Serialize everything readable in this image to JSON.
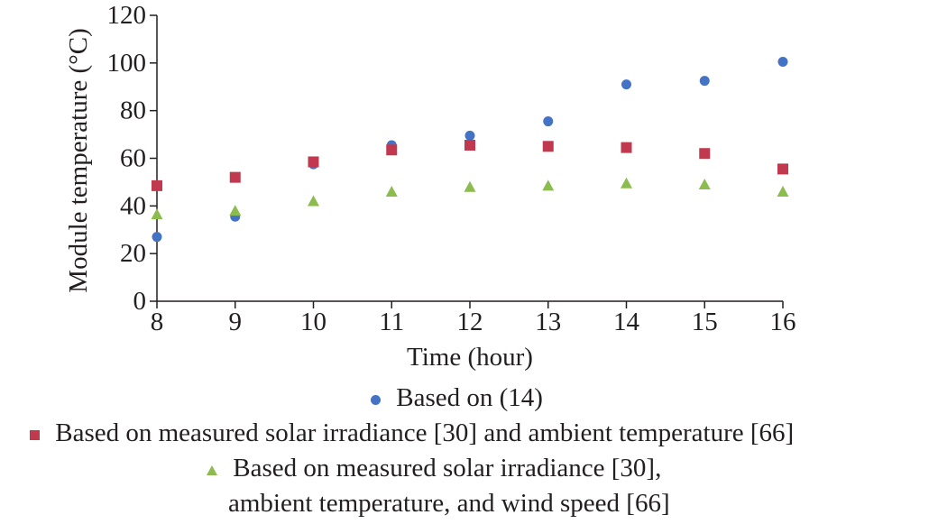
{
  "chart_data": {
    "type": "scatter",
    "x": [
      8,
      9,
      10,
      11,
      12,
      13,
      14,
      15,
      16
    ],
    "xlabel": "Time (hour)",
    "ylabel": "Module temperature (°C)",
    "xlim": [
      8,
      16
    ],
    "ylim": [
      0,
      120
    ],
    "xticks": [
      "8",
      "9",
      "10",
      "11",
      "12",
      "13",
      "14",
      "15",
      "16"
    ],
    "yticks": [
      "0",
      "20",
      "40",
      "60",
      "80",
      "100",
      "120"
    ],
    "grid": false,
    "legend_position": "bottom",
    "series": [
      {
        "name": "Based on (14)",
        "marker": "circle",
        "color": "#4472c4",
        "values": [
          27,
          35.5,
          57.5,
          65.5,
          69.5,
          75.5,
          91,
          92.5,
          100.5
        ]
      },
      {
        "name": "Based on measured solar irradiance [30] and ambient temperature [66]",
        "marker": "square",
        "color": "#c0394e",
        "values": [
          48.5,
          52,
          58.5,
          63.5,
          65.5,
          65,
          64.5,
          62,
          55.5
        ]
      },
      {
        "name_lines": [
          "Based on measured solar irradiance [30],",
          "ambient temperature, and wind speed [66]"
        ],
        "marker": "triangle",
        "color": "#8cbc4e",
        "values": [
          36.5,
          38,
          42,
          46,
          48,
          48.5,
          49.5,
          49,
          46
        ]
      }
    ]
  }
}
